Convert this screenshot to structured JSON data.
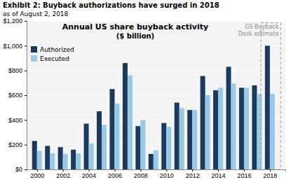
{
  "chart_data": {
    "type": "bar",
    "title": "Annual US share buyback activity",
    "subtitle": "($ billion)",
    "annotations": [
      "Exhibit 2: Buyback authorizations have surged in 2018",
      "as of August 2, 2018",
      "GS Buyback",
      "Desk estimate"
    ],
    "x": [
      2000,
      2001,
      2002,
      2003,
      2004,
      2005,
      2006,
      2007,
      2008,
      2009,
      2010,
      2011,
      2012,
      2013,
      2014,
      2015,
      2016,
      2017,
      2018
    ],
    "series": [
      {
        "name": "Authorized",
        "color": "#1c3a5e",
        "values": [
          230,
          190,
          180,
          160,
          370,
          470,
          650,
          860,
          350,
          125,
          375,
          540,
          480,
          755,
          640,
          830,
          660,
          680,
          1000
        ]
      },
      {
        "name": "Executed",
        "color": "#99c9e4",
        "values": [
          150,
          130,
          125,
          130,
          210,
          360,
          530,
          760,
          400,
          155,
          345,
          495,
          480,
          600,
          660,
          695,
          660,
          610,
          610
        ]
      }
    ],
    "xlim": [
      1999.2,
      2019.2
    ],
    "xticks": [
      2000,
      2002,
      2004,
      2006,
      2008,
      2010,
      2012,
      2014,
      2016,
      2018
    ],
    "ylim": [
      0,
      1200
    ],
    "yticks": [
      {
        "value": 0,
        "label": "$0"
      },
      {
        "value": 200,
        "label": "$200"
      },
      {
        "value": 400,
        "label": "$400"
      },
      {
        "value": 600,
        "label": "$600"
      },
      {
        "value": 800,
        "label": "$800"
      },
      {
        "value": 1000,
        "label": "$1,000"
      },
      {
        "value": 1200,
        "label": "$1,200"
      }
    ],
    "grid": true,
    "legend": "upper left"
  }
}
